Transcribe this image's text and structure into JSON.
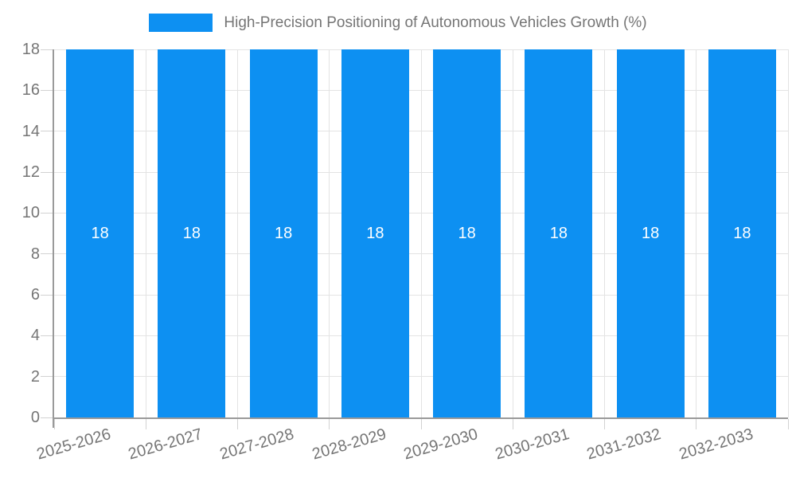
{
  "legend": {
    "label": "High-Precision Positioning of Autonomous Vehicles Growth (%)"
  },
  "chart_data": {
    "type": "bar",
    "title": "High-Precision Positioning of Autonomous Vehicles Growth (%)",
    "categories": [
      "2025-2026",
      "2026-2027",
      "2027-2028",
      "2028-2029",
      "2029-2030",
      "2030-2031",
      "2031-2032",
      "2032-2033"
    ],
    "values": [
      18,
      18,
      18,
      18,
      18,
      18,
      18,
      18
    ],
    "data_labels": [
      "18",
      "18",
      "18",
      "18",
      "18",
      "18",
      "18",
      "18"
    ],
    "xlabel": "",
    "ylabel": "",
    "ylim": [
      0,
      18
    ],
    "yticks": [
      0,
      2,
      4,
      6,
      8,
      10,
      12,
      14,
      16,
      18
    ],
    "legend_position": "top",
    "grid": true,
    "colors": {
      "bar": "#0d90f2",
      "bar_label": "#ffffff",
      "axis_line": "#9a9a9a",
      "gridline": "#e3e3e3",
      "tick_mark": "#d2d2d2",
      "tick_label": "#757575",
      "background": "#ffffff"
    }
  }
}
